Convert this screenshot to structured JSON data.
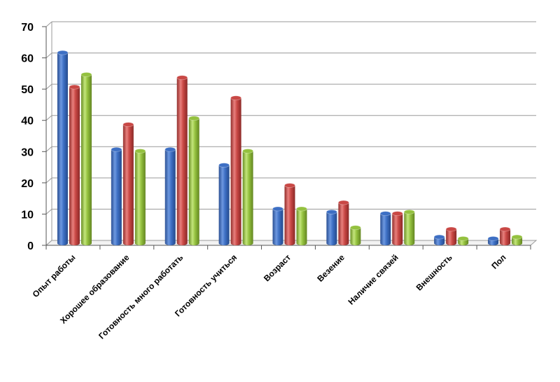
{
  "chart_data": {
    "type": "bar",
    "title": "",
    "xlabel": "",
    "ylabel": "",
    "ylim": [
      0,
      70
    ],
    "yticks": [
      0,
      10,
      20,
      30,
      40,
      50,
      60,
      70
    ],
    "grid": true,
    "legend": "none",
    "categories": [
      "Опыт работы",
      "Хорошее образование",
      "Готовность много работать",
      "Готовность учиться",
      "Возраст",
      "Везение",
      "Наличие связей",
      "Внешность",
      "Пол"
    ],
    "series": [
      {
        "color": "#3d6fc4",
        "values": [
          61,
          30,
          30,
          25,
          11,
          10,
          9.5,
          2,
          1.5
        ]
      },
      {
        "color": "#c94845",
        "values": [
          50,
          38,
          53,
          46.5,
          18.5,
          13,
          9.5,
          4.5,
          4.5
        ]
      },
      {
        "color": "#94c13f",
        "values": [
          54,
          29.5,
          40,
          29.5,
          11,
          5,
          10,
          1.5,
          2
        ]
      }
    ]
  }
}
